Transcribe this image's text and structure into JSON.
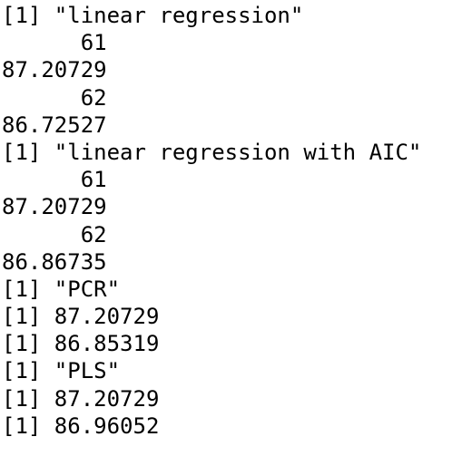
{
  "console": {
    "lines": [
      "[1] \"linear regression\"",
      "      61",
      "87.20729",
      "      62",
      "86.72527",
      "[1] \"linear regression with AIC\"",
      "      61",
      "87.20729",
      "      62",
      "86.86735",
      "[1] \"PCR\"",
      "[1] 87.20729",
      "[1] 86.85319",
      "[1] \"PLS\"",
      "[1] 87.20729",
      "[1] 86.96052"
    ]
  }
}
